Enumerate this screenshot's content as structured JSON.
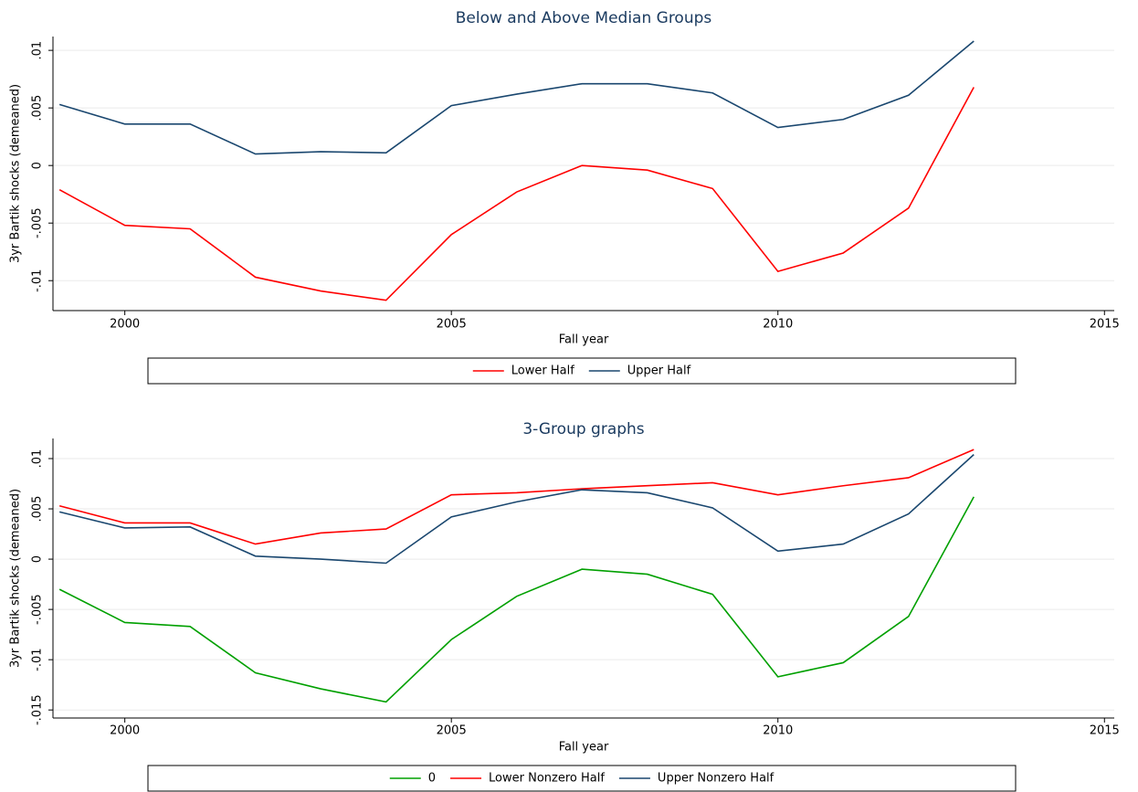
{
  "chart_data": [
    {
      "type": "line",
      "title": "Below and Above Median Groups",
      "x_label": "Fall year",
      "y_label": "3yr Bartik shocks (demeaned)",
      "x": [
        1999,
        2000,
        2001,
        2002,
        2003,
        2004,
        2005,
        2006,
        2007,
        2008,
        2009,
        2010,
        2011,
        2012,
        2013
      ],
      "series": [
        {
          "name": "Lower Half",
          "color": "#ff0000",
          "values": [
            -0.0021,
            -0.0052,
            -0.0055,
            -0.0097,
            -0.0109,
            -0.0117,
            -0.006,
            -0.0023,
            0,
            -0.0004,
            -0.002,
            -0.0092,
            -0.0076,
            -0.0037,
            0.0068
          ]
        },
        {
          "name": "Upper Half",
          "color": "#1a476f",
          "values": [
            0.0053,
            0.0036,
            0.0036,
            0.001,
            0.0012,
            0.0011,
            0.0052,
            0.0062,
            0.0071,
            0.0071,
            0.0063,
            0.0033,
            0.004,
            0.0061,
            0.0108
          ]
        }
      ],
      "xlim": [
        1998.9,
        2015.15
      ],
      "ylim": [
        -0.0126,
        0.0112
      ],
      "xticks": [
        2000,
        2005,
        2010,
        2015
      ],
      "yticks": [
        {
          "value": -0.01,
          "label": "-.01"
        },
        {
          "value": -0.005,
          "label": "-.005"
        },
        0,
        {
          "value": 0.005,
          "label": ".005"
        },
        {
          "value": 0.01,
          "label": ".01"
        }
      ],
      "grid": true
    },
    {
      "type": "line",
      "title": "3-Group graphs",
      "x_label": "Fall year",
      "y_label": "3yr Bartik shocks (demeaned)",
      "x": [
        1999,
        2000,
        2001,
        2002,
        2003,
        2004,
        2005,
        2006,
        2007,
        2008,
        2009,
        2010,
        2011,
        2012,
        2013
      ],
      "series": [
        {
          "name": "0",
          "color": "#00a000",
          "values": [
            -0.003,
            -0.0063,
            -0.0067,
            -0.0113,
            -0.0129,
            -0.0142,
            -0.008,
            -0.0037,
            -0.001,
            -0.0015,
            -0.0035,
            -0.0117,
            -0.0103,
            -0.0057,
            0.0062
          ]
        },
        {
          "name": "Lower Nonzero Half",
          "color": "#ff0000",
          "values": [
            0.0053,
            0.0036,
            0.0036,
            0.0015,
            0.0026,
            0.003,
            0.0064,
            0.0066,
            0.007,
            0.0073,
            0.0076,
            0.0064,
            0.0073,
            0.0081,
            0.0109
          ]
        },
        {
          "name": "Upper Nonzero Half",
          "color": "#1a476f",
          "values": [
            0.0047,
            0.0031,
            0.0032,
            0.0003,
            0,
            -0.0004,
            0.0042,
            0.0057,
            0.0069,
            0.0066,
            0.0051,
            0.0008,
            0.0015,
            0.0045,
            0.0104
          ]
        }
      ],
      "xlim": [
        1998.9,
        2015.15
      ],
      "ylim": [
        -0.0158,
        0.012
      ],
      "xticks": [
        2000,
        2005,
        2010,
        2015
      ],
      "yticks": [
        {
          "value": -0.015,
          "label": "-.015"
        },
        {
          "value": -0.01,
          "label": "-.01"
        },
        {
          "value": -0.005,
          "label": "-.005"
        },
        0,
        {
          "value": 0.005,
          "label": ".005"
        },
        {
          "value": 0.01,
          "label": ".01"
        }
      ],
      "grid": true
    }
  ]
}
